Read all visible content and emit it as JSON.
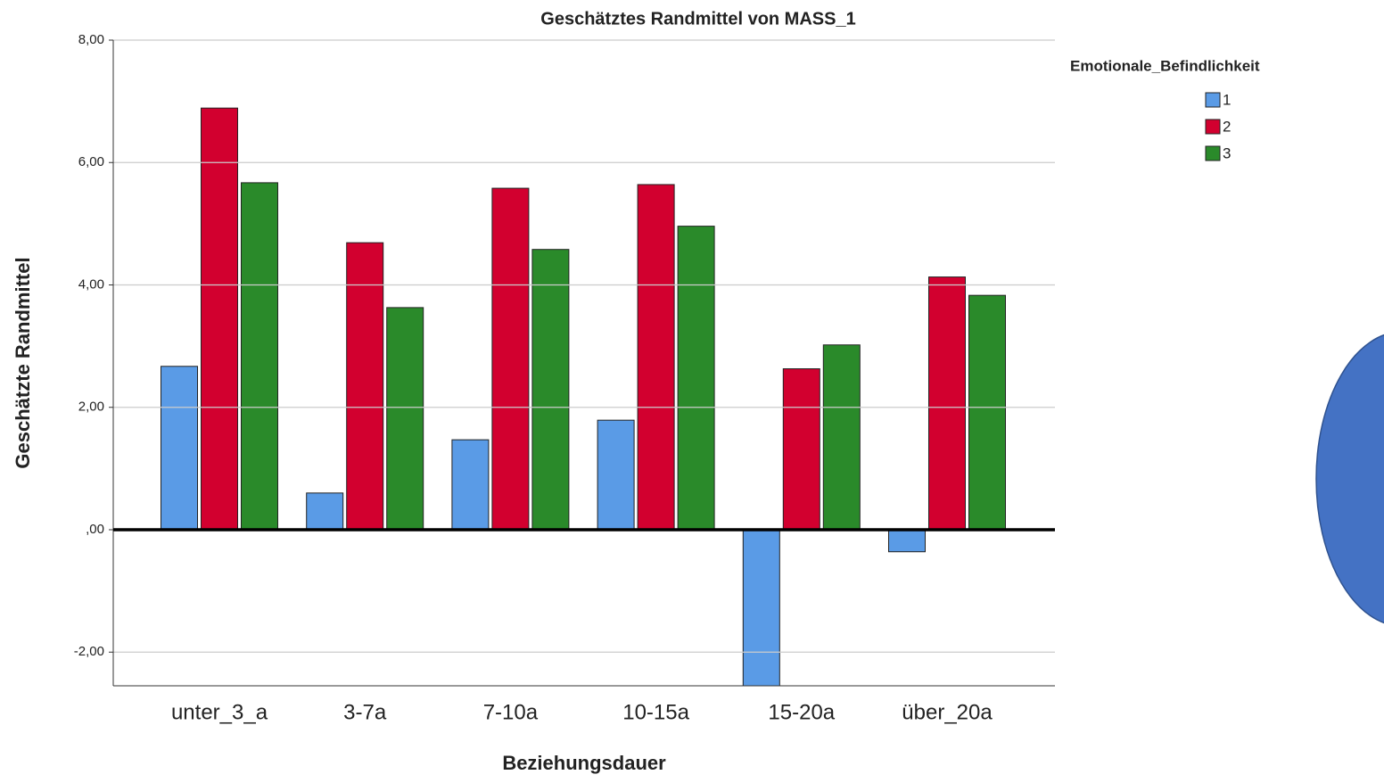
{
  "chart_data": {
    "type": "bar",
    "title": "Geschätztes Randmittel von MASS_1",
    "xlabel": "Beziehungsdauer",
    "ylabel": "Geschätzte Randmittel",
    "legend_title": "Emotionale_Befindlichkeit",
    "categories": [
      "unter_3_a",
      "3-7a",
      "7-10a",
      "10-15a",
      "15-20a",
      "über_20a"
    ],
    "series": [
      {
        "name": "1",
        "color": "#5a9be6",
        "values": [
          2.67,
          0.6,
          1.47,
          1.79,
          -2.6,
          -0.36
        ]
      },
      {
        "name": "2",
        "color": "#d2002f",
        "values": [
          6.89,
          4.69,
          5.58,
          5.64,
          2.63,
          4.13
        ]
      },
      {
        "name": "3",
        "color": "#2a8a2a",
        "values": [
          5.67,
          3.63,
          4.58,
          4.96,
          3.02,
          3.83
        ]
      }
    ],
    "ylim": [
      -2.55,
      8
    ],
    "yticks": [
      {
        "value": -2,
        "label": "-2,00"
      },
      {
        "value": 0,
        "label": ",00"
      },
      {
        "value": 2,
        "label": "2,00"
      },
      {
        "value": 4,
        "label": "4,00"
      },
      {
        "value": 6,
        "label": "6,00"
      },
      {
        "value": 8,
        "label": "8,00"
      }
    ],
    "grid": true
  }
}
